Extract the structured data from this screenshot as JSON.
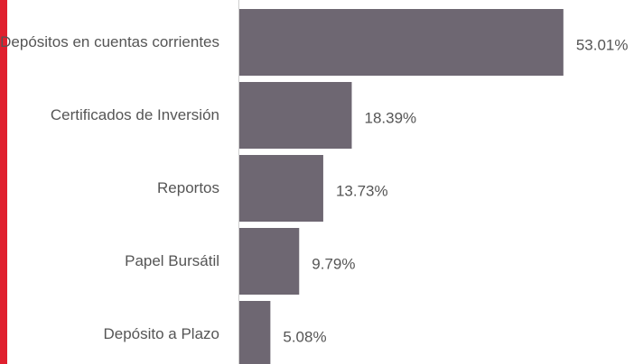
{
  "chart_data": {
    "type": "barh",
    "categories": [
      "Depósitos en cuentas corrientes",
      "Certificados de Inversión",
      "Reportos",
      "Papel Bursátil",
      "Depósito a Plazo"
    ],
    "values": [
      53.01,
      18.39,
      13.73,
      9.79,
      5.08
    ],
    "value_labels": [
      "53.01%",
      "18.39%",
      "13.73%",
      "9.79%",
      "5.08%"
    ],
    "color": "#6e6772",
    "xlim": [
      0,
      65
    ]
  }
}
